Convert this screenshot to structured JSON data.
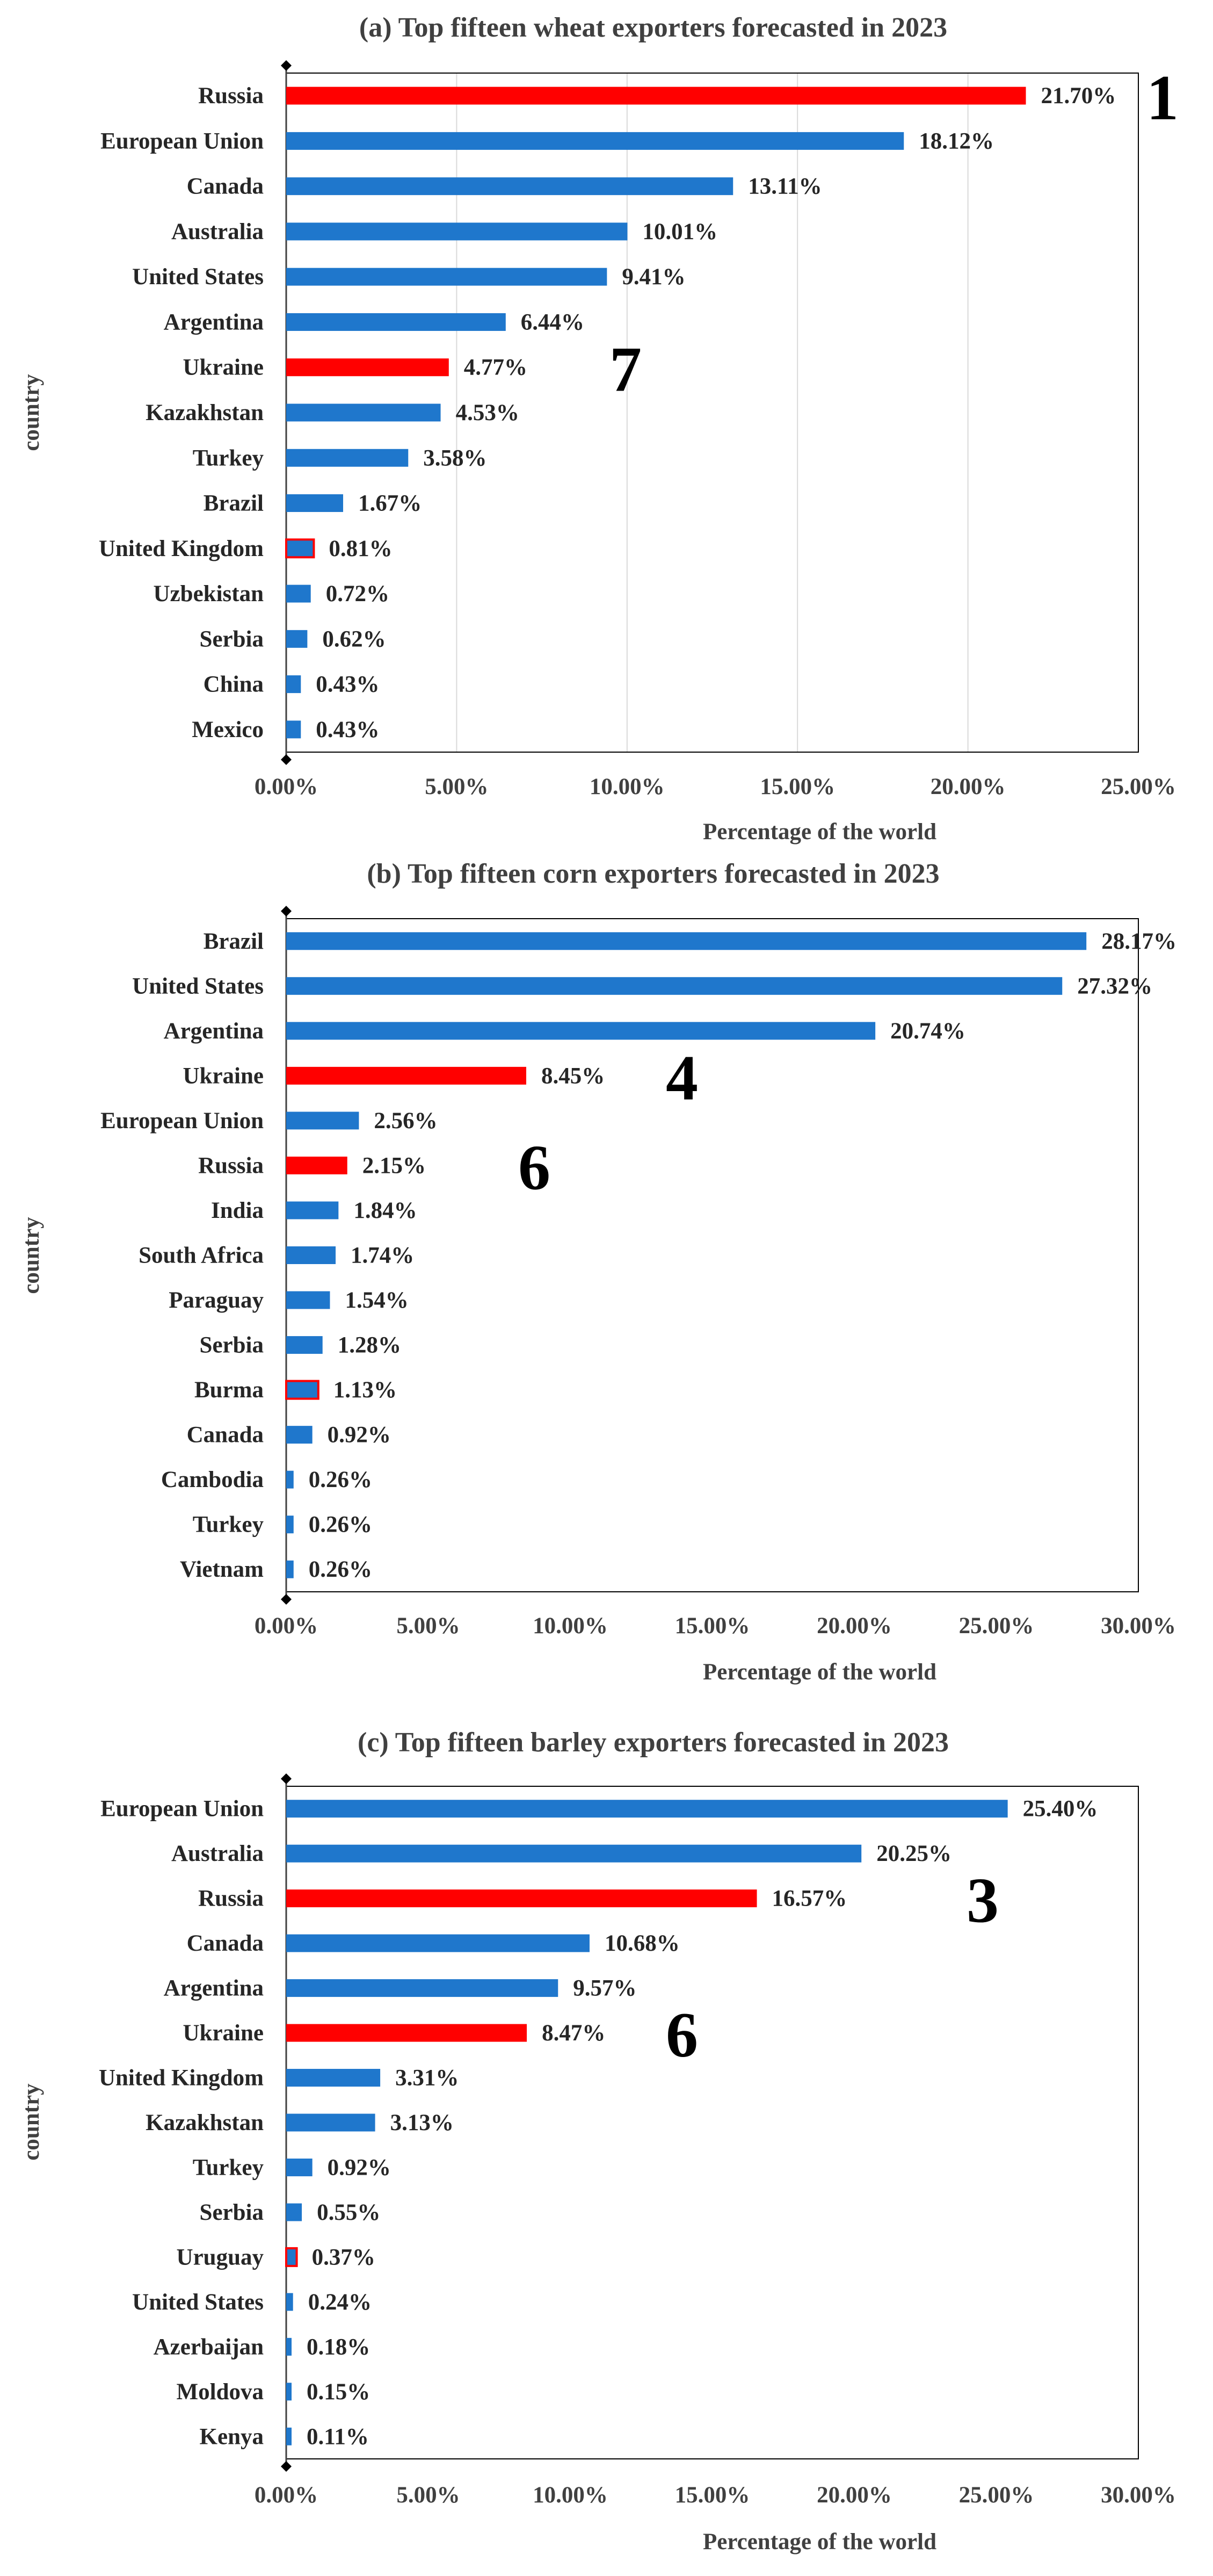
{
  "colors": {
    "blue": "#1F77CC",
    "red": "#FF0000",
    "grid": "#D9D9D9",
    "axis": "#404040",
    "frame": "#000000"
  },
  "chart_data": [
    {
      "type": "bar",
      "orientation": "horizontal",
      "title": "(a) Top fifteen wheat exporters forecasted in 2023",
      "xlabel": "Percentage of the world",
      "ylabel": "country",
      "xlim": [
        0,
        25
      ],
      "xticks": [
        "0.00%",
        "5.00%",
        "10.00%",
        "15.00%",
        "20.00%",
        "25.00%"
      ],
      "grid": true,
      "categories": [
        "Russia",
        "European Union",
        "Canada",
        "Australia",
        "United States",
        "Argentina",
        "Ukraine",
        "Kazakhstan",
        "Turkey",
        "Brazil",
        "United Kingdom",
        "Uzbekistan",
        "Serbia",
        "China",
        "Mexico"
      ],
      "values": [
        21.7,
        18.12,
        13.11,
        10.01,
        9.41,
        6.44,
        4.77,
        4.53,
        3.58,
        1.67,
        0.81,
        0.72,
        0.62,
        0.43,
        0.43
      ],
      "labels": [
        "21.70%",
        "18.12%",
        "13.11%",
        "10.01%",
        "9.41%",
        "6.44%",
        "4.77%",
        "4.53%",
        "3.58%",
        "1.67%",
        "0.81%",
        "0.72%",
        "0.62%",
        "0.43%",
        "0.43%"
      ],
      "highlight": [
        "red",
        "blue",
        "blue",
        "blue",
        "blue",
        "blue",
        "red",
        "blue",
        "blue",
        "blue",
        "outlined",
        "blue",
        "blue",
        "blue",
        "blue"
      ],
      "annotations": [
        {
          "text": "1",
          "category": "Russia"
        },
        {
          "text": "7",
          "category": "Ukraine"
        }
      ]
    },
    {
      "type": "bar",
      "orientation": "horizontal",
      "title": "(b) Top fifteen corn exporters forecasted in 2023",
      "xlabel": "Percentage of the world",
      "ylabel": "country",
      "xlim": [
        0,
        30
      ],
      "xticks": [
        "0.00%",
        "5.00%",
        "10.00%",
        "15.00%",
        "20.00%",
        "25.00%",
        "30.00%"
      ],
      "grid": false,
      "categories": [
        "Brazil",
        "United States",
        "Argentina",
        "Ukraine",
        "European Union",
        "Russia",
        "India",
        "South Africa",
        "Paraguay",
        "Serbia",
        "Burma",
        "Canada",
        "Cambodia",
        "Turkey",
        "Vietnam"
      ],
      "values": [
        28.17,
        27.32,
        20.74,
        8.45,
        2.56,
        2.15,
        1.84,
        1.74,
        1.54,
        1.28,
        1.13,
        0.92,
        0.26,
        0.26,
        0.26
      ],
      "labels": [
        "28.17%",
        "27.32%",
        "20.74%",
        "8.45%",
        "2.56%",
        "2.15%",
        "1.84%",
        "1.74%",
        "1.54%",
        "1.28%",
        "1.13%",
        "0.92%",
        "0.26%",
        "0.26%",
        "0.26%"
      ],
      "highlight": [
        "blue",
        "blue",
        "blue",
        "red",
        "blue",
        "red",
        "blue",
        "blue",
        "blue",
        "blue",
        "outlined",
        "blue",
        "blue",
        "blue",
        "blue"
      ],
      "annotations": [
        {
          "text": "4",
          "category": "Ukraine"
        },
        {
          "text": "6",
          "category": "Russia"
        }
      ]
    },
    {
      "type": "bar",
      "orientation": "horizontal",
      "title": "(c) Top fifteen barley exporters forecasted in 2023",
      "xlabel": "Percentage of the world",
      "ylabel": "country",
      "xlim": [
        0,
        30
      ],
      "xticks": [
        "0.00%",
        "5.00%",
        "10.00%",
        "15.00%",
        "20.00%",
        "25.00%",
        "30.00%"
      ],
      "grid": false,
      "categories": [
        "European Union",
        "Australia",
        "Russia",
        "Canada",
        "Argentina",
        "Ukraine",
        "United Kingdom",
        "Kazakhstan",
        "Turkey",
        "Serbia",
        "Uruguay",
        "United States",
        "Azerbaijan",
        "Moldova",
        "Kenya"
      ],
      "values": [
        25.4,
        20.25,
        16.57,
        10.68,
        9.57,
        8.47,
        3.31,
        3.13,
        0.92,
        0.55,
        0.37,
        0.24,
        0.18,
        0.15,
        0.11
      ],
      "labels": [
        "25.40%",
        "20.25%",
        "16.57%",
        "10.68%",
        "9.57%",
        "8.47%",
        "3.31%",
        "3.13%",
        "0.92%",
        "0.55%",
        "0.37%",
        "0.24%",
        "0.18%",
        "0.15%",
        "0.11%"
      ],
      "highlight": [
        "blue",
        "blue",
        "red",
        "blue",
        "blue",
        "red",
        "blue",
        "blue",
        "blue",
        "blue",
        "outlined",
        "blue",
        "blue",
        "blue",
        "blue"
      ],
      "annotations": [
        {
          "text": "3",
          "category": "Russia"
        },
        {
          "text": "6",
          "category": "Ukraine"
        }
      ]
    }
  ]
}
